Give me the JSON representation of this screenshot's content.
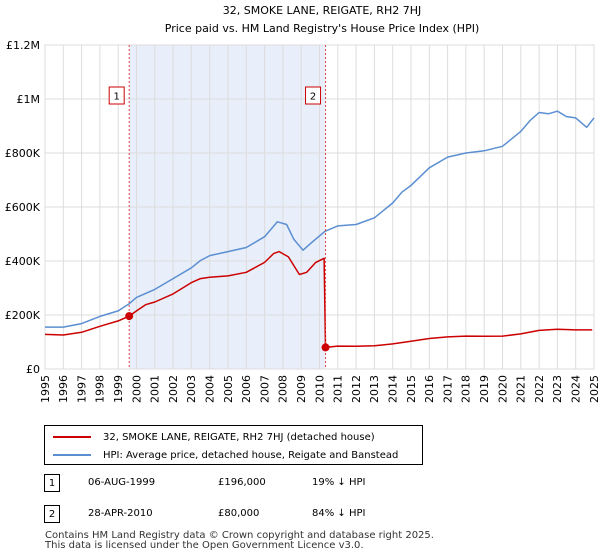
{
  "chart_data": {
    "type": "line",
    "title": "32, SMOKE LANE, REIGATE, RH2 7HJ",
    "subtitle": "Price paid vs. HM Land Registry's House Price Index (HPI)",
    "xlim": [
      1995,
      2025
    ],
    "ylim": [
      0,
      1200000
    ],
    "yticks": [
      0,
      200000,
      400000,
      600000,
      800000,
      1000000,
      1200000
    ],
    "ytick_labels": [
      "£0",
      "£200K",
      "£400K",
      "£600K",
      "£800K",
      "£1M",
      "£1.2M"
    ],
    "xticks": [
      1995,
      1996,
      1997,
      1998,
      1999,
      2000,
      2001,
      2002,
      2003,
      2004,
      2005,
      2006,
      2007,
      2008,
      2009,
      2010,
      2011,
      2012,
      2013,
      2014,
      2015,
      2016,
      2017,
      2018,
      2019,
      2020,
      2021,
      2022,
      2023,
      2024,
      2025
    ],
    "xtick_labels": [
      "1995",
      "1996",
      "1997",
      "1998",
      "1999",
      "2000",
      "2001",
      "2002",
      "2003",
      "2004",
      "2005",
      "2006",
      "2007",
      "2008",
      "2009",
      "2010",
      "2011",
      "2012",
      "2013",
      "2014",
      "2015",
      "2016",
      "2017",
      "2018",
      "2019",
      "2020",
      "2021",
      "2022",
      "2023",
      "2024",
      "2025"
    ],
    "grid": true,
    "shaded_region": [
      1999.6,
      2010.33
    ],
    "series": [
      {
        "name": "32, SMOKE LANE, REIGATE, RH2 7HJ (detached house)",
        "color": "#cc0000",
        "points": [
          [
            1995.0,
            128000
          ],
          [
            1996.0,
            126000
          ],
          [
            1997.0,
            136000
          ],
          [
            1998.0,
            158000
          ],
          [
            1999.0,
            178000
          ],
          [
            1999.6,
            196000
          ],
          [
            2000.0,
            215000
          ],
          [
            2000.5,
            238000
          ],
          [
            2001.0,
            248000
          ],
          [
            2002.0,
            278000
          ],
          [
            2003.0,
            320000
          ],
          [
            2003.5,
            335000
          ],
          [
            2004.0,
            340000
          ],
          [
            2005.0,
            345000
          ],
          [
            2006.0,
            358000
          ],
          [
            2007.0,
            395000
          ],
          [
            2007.5,
            428000
          ],
          [
            2007.8,
            435000
          ],
          [
            2008.3,
            415000
          ],
          [
            2008.9,
            350000
          ],
          [
            2009.3,
            358000
          ],
          [
            2009.8,
            395000
          ],
          [
            2010.25,
            410000
          ],
          [
            2010.33,
            80000
          ],
          [
            2011.0,
            85000
          ],
          [
            2012.0,
            84000
          ],
          [
            2013.0,
            86000
          ],
          [
            2014.0,
            93000
          ],
          [
            2015.0,
            103000
          ],
          [
            2016.0,
            113000
          ],
          [
            2017.0,
            119000
          ],
          [
            2018.0,
            122000
          ],
          [
            2019.0,
            121000
          ],
          [
            2020.0,
            122000
          ],
          [
            2021.0,
            130000
          ],
          [
            2022.0,
            143000
          ],
          [
            2023.0,
            147000
          ],
          [
            2024.0,
            145000
          ],
          [
            2024.9,
            145000
          ]
        ]
      },
      {
        "name": "HPI: Average price, detached house, Reigate and Banstead",
        "color": "#5b8fd1",
        "points": [
          [
            1995.0,
            155000
          ],
          [
            1996.0,
            155000
          ],
          [
            1997.0,
            168000
          ],
          [
            1998.0,
            195000
          ],
          [
            1999.0,
            215000
          ],
          [
            1999.6,
            242000
          ],
          [
            2000.0,
            265000
          ],
          [
            2001.0,
            295000
          ],
          [
            2002.0,
            335000
          ],
          [
            2003.0,
            375000
          ],
          [
            2003.5,
            402000
          ],
          [
            2004.0,
            420000
          ],
          [
            2005.0,
            435000
          ],
          [
            2006.0,
            450000
          ],
          [
            2007.0,
            490000
          ],
          [
            2007.7,
            545000
          ],
          [
            2008.2,
            535000
          ],
          [
            2008.6,
            480000
          ],
          [
            2009.1,
            440000
          ],
          [
            2009.6,
            470000
          ],
          [
            2010.3,
            510000
          ],
          [
            2011.0,
            530000
          ],
          [
            2012.0,
            535000
          ],
          [
            2013.0,
            560000
          ],
          [
            2014.0,
            615000
          ],
          [
            2014.5,
            655000
          ],
          [
            2015.0,
            680000
          ],
          [
            2016.0,
            745000
          ],
          [
            2017.0,
            785000
          ],
          [
            2018.0,
            800000
          ],
          [
            2019.0,
            808000
          ],
          [
            2020.0,
            825000
          ],
          [
            2021.0,
            880000
          ],
          [
            2021.5,
            920000
          ],
          [
            2022.0,
            950000
          ],
          [
            2022.5,
            945000
          ],
          [
            2023.0,
            955000
          ],
          [
            2023.5,
            935000
          ],
          [
            2024.0,
            930000
          ],
          [
            2024.6,
            895000
          ],
          [
            2025.0,
            930000
          ]
        ]
      }
    ],
    "transactions": [
      {
        "label": "1",
        "x": 1999.6,
        "y": 196000
      },
      {
        "label": "2",
        "x": 2010.33,
        "y": 80000
      }
    ]
  },
  "legend": {
    "item1": "32, SMOKE LANE, REIGATE, RH2 7HJ (detached house)",
    "item2": "HPI: Average price, detached house, Reigate and Banstead"
  },
  "transactions_table": [
    {
      "num": "1",
      "date": "06-AUG-1999",
      "price": "£196,000",
      "hpi": "19% ↓ HPI"
    },
    {
      "num": "2",
      "date": "28-APR-2010",
      "price": "£80,000",
      "hpi": "84% ↓ HPI"
    }
  ],
  "footer": {
    "line1": "Contains HM Land Registry data © Crown copyright and database right 2025.",
    "line2": "This data is licensed under the Open Government Licence v3.0."
  }
}
